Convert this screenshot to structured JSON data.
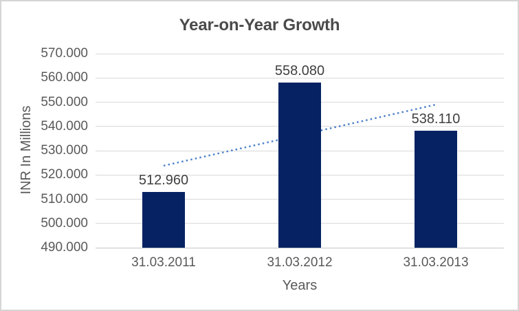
{
  "window": {
    "background": "#ffffff",
    "border_color": "#d5d5d5"
  },
  "chart_data": {
    "type": "bar",
    "title": "Year-on-Year Growth",
    "xlabel": "Years",
    "ylabel": "INR In Millions",
    "categories": [
      "31.03.2011",
      "31.03.2012",
      "31.03.2013"
    ],
    "series": [
      {
        "name": "INR In Millions",
        "values": [
          512.96,
          558.08,
          538.11
        ]
      }
    ],
    "data_labels": [
      "512.960",
      "558.080",
      "538.110"
    ],
    "ylim": [
      490,
      570
    ],
    "ytick_step": 10,
    "yticks": [
      {
        "value": 570,
        "label": "570.000"
      },
      {
        "value": 560,
        "label": "560.000"
      },
      {
        "value": 550,
        "label": "550.000"
      },
      {
        "value": 540,
        "label": "540.000"
      },
      {
        "value": 530,
        "label": "530.000"
      },
      {
        "value": 520,
        "label": "520.000"
      },
      {
        "value": 510,
        "label": "510.000"
      },
      {
        "value": 500,
        "label": "500.000"
      },
      {
        "value": 490,
        "label": "490.000"
      }
    ],
    "grid": true,
    "legend": "none",
    "trendline": {
      "type": "linear",
      "style": "dotted",
      "start_value": 523.8,
      "end_value": 549.0
    },
    "colors": {
      "bar": "#062263",
      "trendline": "#4e81c8",
      "gridline": "#d9d9d9",
      "axis_line": "#c4c4c4",
      "title_text": "#4a4a4a",
      "axis_text": "#595959",
      "data_label_text": "#404040"
    }
  }
}
